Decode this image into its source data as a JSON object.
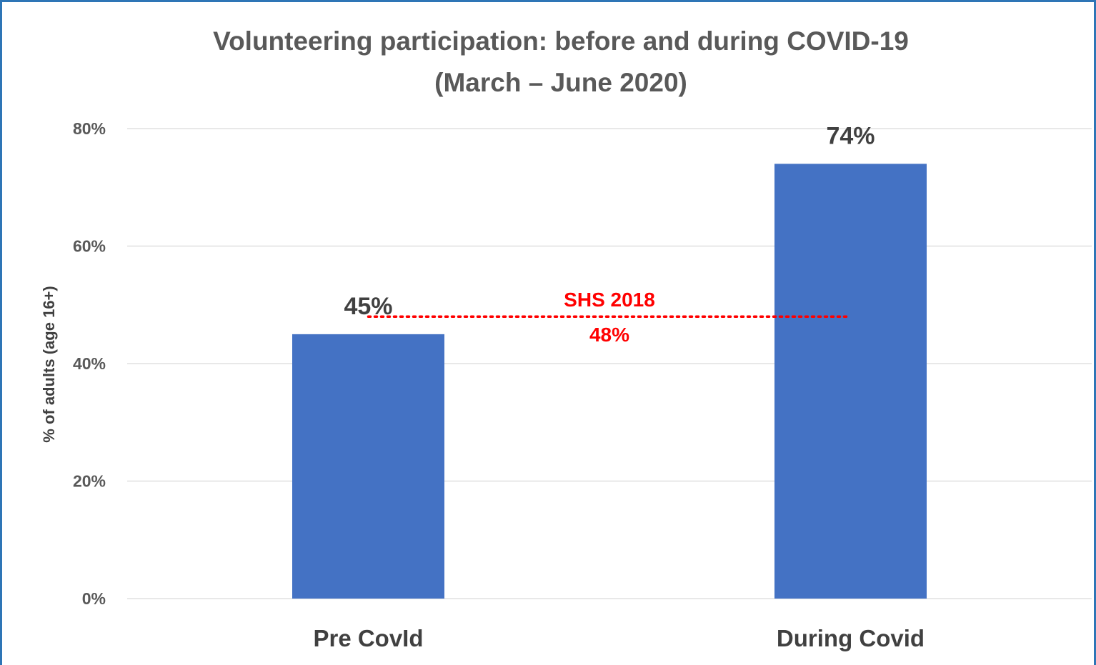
{
  "chart_data": {
    "type": "bar",
    "title_line1": "Volunteering participation: before and during COVID-19",
    "title_line2": "(March – June 2020)",
    "ylabel": "% of adults (age 16+)",
    "xlabel": "",
    "categories": [
      "Pre CovId",
      "During Covid"
    ],
    "values": [
      45,
      74
    ],
    "value_labels": [
      "45%",
      "74%"
    ],
    "ylim": [
      0,
      80
    ],
    "yticks": [
      0,
      20,
      40,
      60,
      80
    ],
    "ytick_labels": [
      "0%",
      "20%",
      "40%",
      "60%",
      "80%"
    ],
    "grid": true,
    "bar_color": "#4472c4",
    "reference_line": {
      "value": 48,
      "name": "SHS 2018",
      "label": "48%",
      "style": "dotted",
      "color": "#ff0000"
    }
  }
}
